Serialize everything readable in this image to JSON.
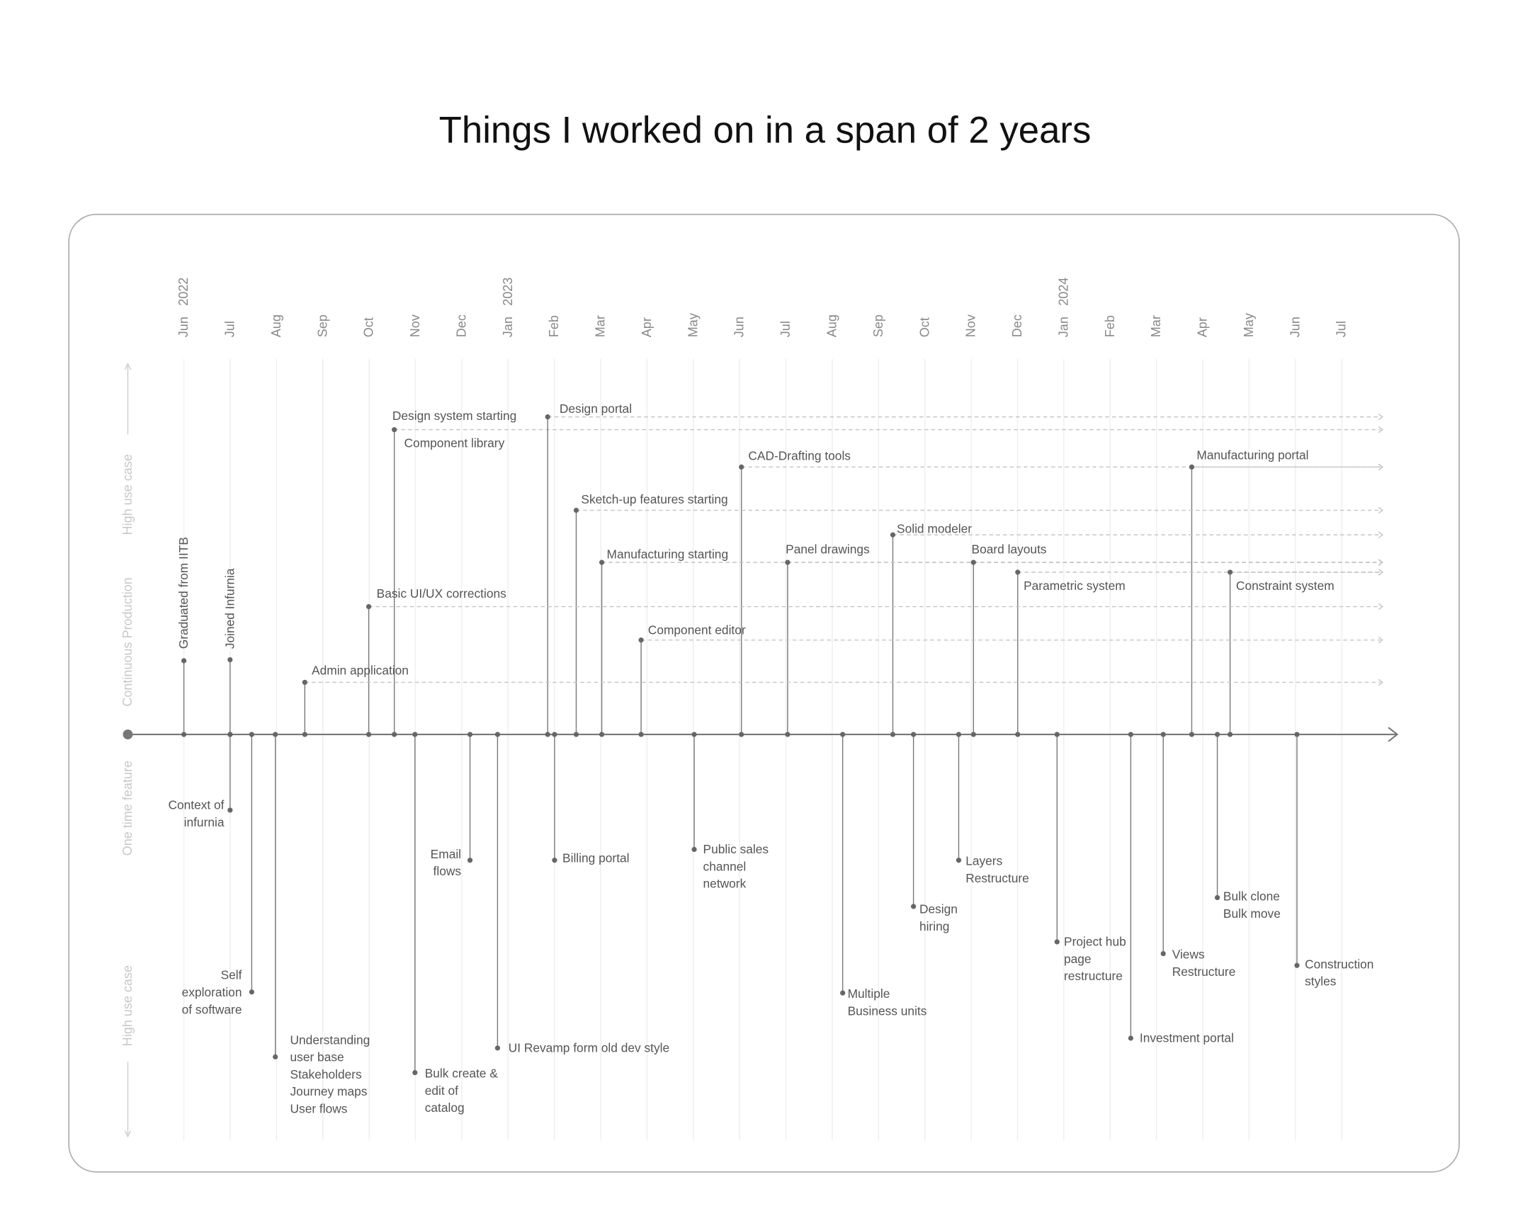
{
  "title": "Things I worked on in a span of 2 years",
  "months": [
    "Jun",
    "Jul",
    "Aug",
    "Sep",
    "Oct",
    "Nov",
    "Dec",
    "Jan",
    "Feb",
    "Mar",
    "Apr",
    "May",
    "Jun",
    "Jul",
    "Aug",
    "Sep",
    "Oct",
    "Nov",
    "Dec",
    "Jan",
    "Feb",
    "Mar",
    "Apr",
    "May",
    "Jun",
    "Jul"
  ],
  "years": [
    "2022",
    "2023",
    "2024"
  ],
  "side_labels": [
    "High use case",
    "Continuous Production",
    "One time feature",
    "High use case"
  ],
  "milestones": [
    "Graduated from IITB",
    "Joined Infurnia"
  ],
  "continuous": [
    {
      "label": "Design system starting",
      "detail": "Component library"
    },
    {
      "label": "Design portal"
    },
    {
      "label": "CAD-Drafting tools"
    },
    {
      "label": "Manufacturing portal"
    },
    {
      "label": "Sketch-up features starting"
    },
    {
      "label": "Solid modeler"
    },
    {
      "label": "Manufacturing starting"
    },
    {
      "label": "Panel drawings"
    },
    {
      "label": "Board layouts"
    },
    {
      "label": "Parametric system"
    },
    {
      "label": "Constraint system"
    },
    {
      "label": "Basic UI/UX corrections"
    },
    {
      "label": "Component editor"
    },
    {
      "label": "Admin application"
    }
  ],
  "one_time": [
    {
      "lines": [
        "Context of",
        "infurnia"
      ]
    },
    {
      "lines": [
        "Self",
        "exploration",
        "of software"
      ]
    },
    {
      "lines": [
        "Understanding",
        "user base",
        "Stakeholders",
        "Journey maps",
        "User flows"
      ]
    },
    {
      "lines": [
        "Bulk create &",
        "edit of",
        "catalog"
      ]
    },
    {
      "lines": [
        "Email",
        "flows"
      ]
    },
    {
      "lines": [
        "UI Revamp form old dev style"
      ]
    },
    {
      "lines": [
        "Billing portal"
      ]
    },
    {
      "lines": [
        "Public sales",
        "channel",
        "network"
      ]
    },
    {
      "lines": [
        "Multiple",
        "Business units"
      ]
    },
    {
      "lines": [
        "Design",
        "hiring"
      ]
    },
    {
      "lines": [
        "Layers",
        "Restructure"
      ]
    },
    {
      "lines": [
        "Project hub",
        "page",
        "restructure"
      ]
    },
    {
      "lines": [
        "Investment portal"
      ]
    },
    {
      "lines": [
        "Views",
        "Restructure"
      ]
    },
    {
      "lines": [
        "Bulk clone",
        "Bulk move"
      ]
    },
    {
      "lines": [
        "Construction",
        "styles"
      ]
    }
  ]
}
